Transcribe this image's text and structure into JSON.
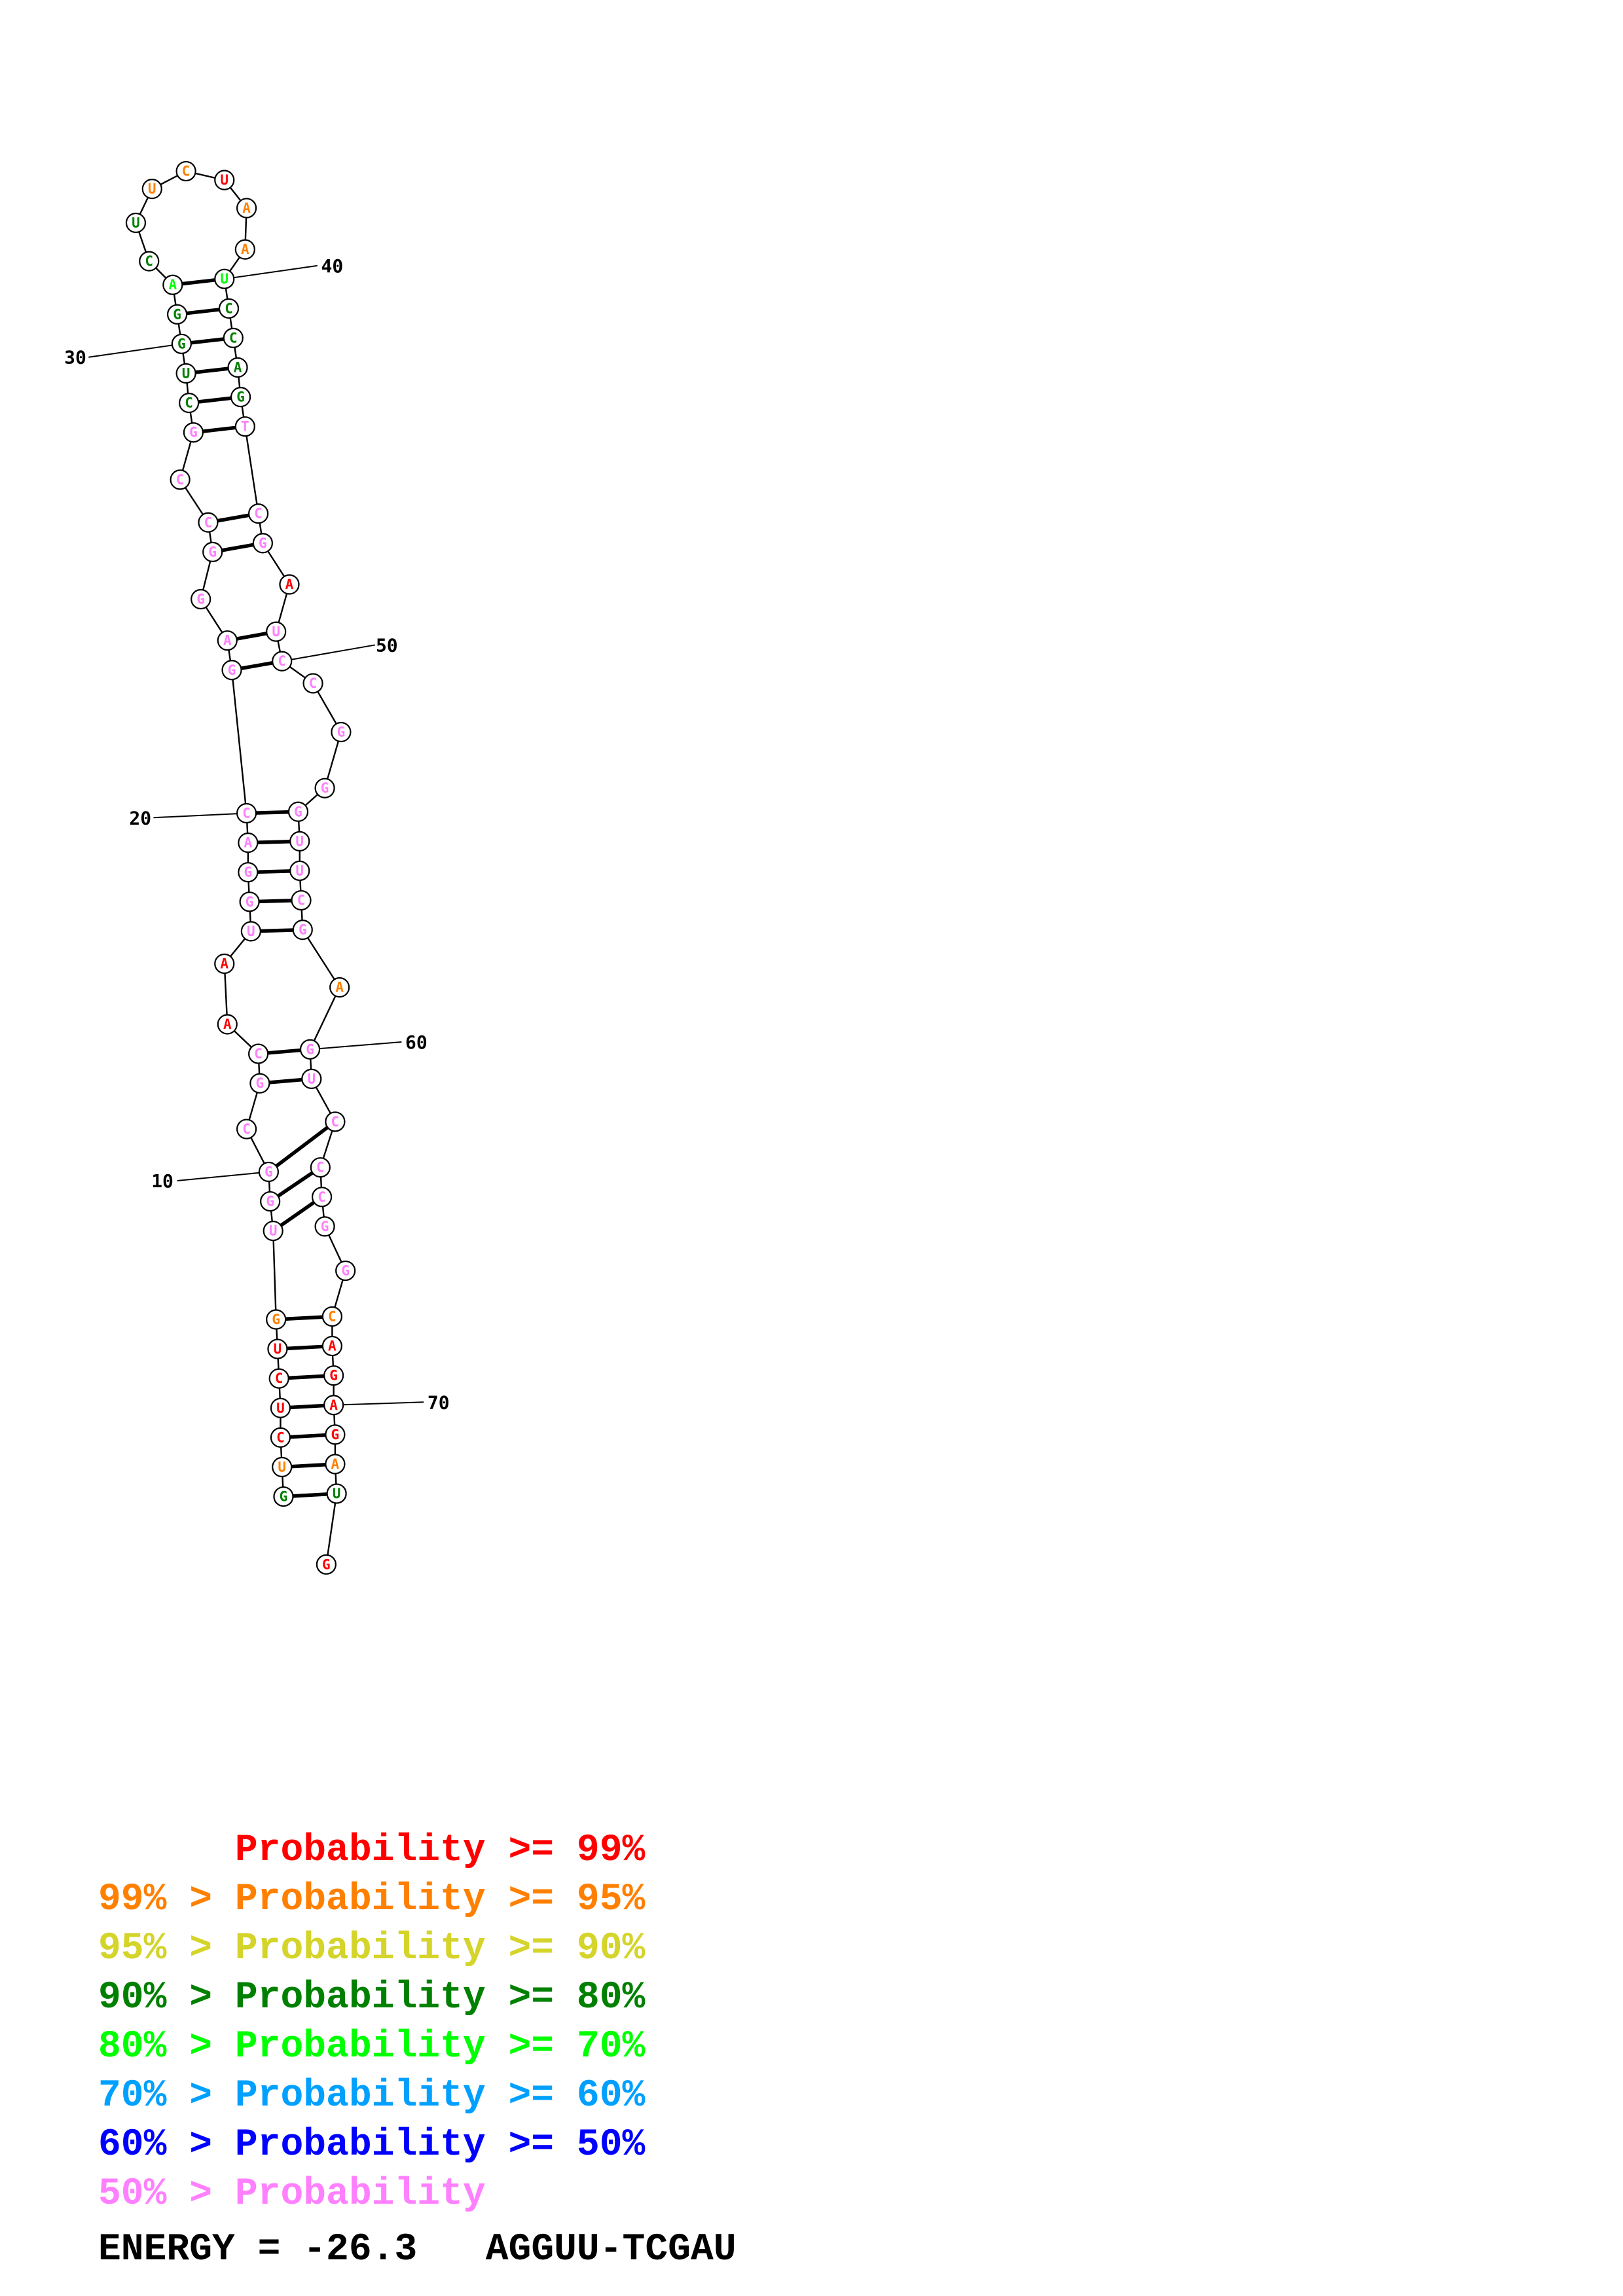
{
  "colors": {
    "c99": "#ff0000",
    "c95": "#ff8000",
    "c90": "#d4d42a",
    "c80": "#008000",
    "c70": "#00ff00",
    "c60": "#00a0ff",
    "c50": "#0000ff",
    "clow": "#ff80ff"
  },
  "structure": {
    "nucleotides": [
      {
        "b": "G",
        "p": "c80"
      },
      {
        "b": "U",
        "p": "c95"
      },
      {
        "b": "C",
        "p": "c99"
      },
      {
        "b": "U",
        "p": "c99"
      },
      {
        "b": "C",
        "p": "c99"
      },
      {
        "b": "U",
        "p": "c99"
      },
      {
        "b": "G",
        "p": "c95"
      },
      {
        "b": "U",
        "p": "clow"
      },
      {
        "b": "G",
        "p": "clow"
      },
      {
        "b": "G",
        "p": "clow"
      },
      {
        "b": "C",
        "p": "clow"
      },
      {
        "b": "G",
        "p": "clow"
      },
      {
        "b": "C",
        "p": "clow"
      },
      {
        "b": "A",
        "p": "c99"
      },
      {
        "b": "A",
        "p": "c99"
      },
      {
        "b": "U",
        "p": "clow"
      },
      {
        "b": "G",
        "p": "clow"
      },
      {
        "b": "G",
        "p": "clow"
      },
      {
        "b": "A",
        "p": "clow"
      },
      {
        "b": "C",
        "p": "clow"
      },
      {
        "b": "G",
        "p": "clow"
      },
      {
        "b": "A",
        "p": "clow"
      },
      {
        "b": "G",
        "p": "clow"
      },
      {
        "b": "G",
        "p": "clow"
      },
      {
        "b": "C",
        "p": "clow"
      },
      {
        "b": "C",
        "p": "clow"
      },
      {
        "b": "G",
        "p": "clow"
      },
      {
        "b": "C",
        "p": "c80"
      },
      {
        "b": "U",
        "p": "c80"
      },
      {
        "b": "G",
        "p": "c80"
      },
      {
        "b": "G",
        "p": "c80"
      },
      {
        "b": "A",
        "p": "c70"
      },
      {
        "b": "C",
        "p": "c80"
      },
      {
        "b": "U",
        "p": "c80"
      },
      {
        "b": "U",
        "p": "c95"
      },
      {
        "b": "C",
        "p": "c95"
      },
      {
        "b": "U",
        "p": "c99"
      },
      {
        "b": "A",
        "p": "c95"
      },
      {
        "b": "A",
        "p": "c95"
      },
      {
        "b": "U",
        "p": "c70"
      },
      {
        "b": "C",
        "p": "c80"
      },
      {
        "b": "C",
        "p": "c80"
      },
      {
        "b": "A",
        "p": "c80"
      },
      {
        "b": "G",
        "p": "c80"
      },
      {
        "b": "T",
        "p": "clow"
      },
      {
        "b": "C",
        "p": "clow"
      },
      {
        "b": "G",
        "p": "clow"
      },
      {
        "b": "A",
        "p": "c99"
      },
      {
        "b": "U",
        "p": "clow"
      },
      {
        "b": "C",
        "p": "clow"
      },
      {
        "b": "C",
        "p": "clow"
      },
      {
        "b": "G",
        "p": "clow"
      },
      {
        "b": "G",
        "p": "clow"
      },
      {
        "b": "G",
        "p": "clow"
      },
      {
        "b": "U",
        "p": "clow"
      },
      {
        "b": "U",
        "p": "clow"
      },
      {
        "b": "C",
        "p": "clow"
      },
      {
        "b": "G",
        "p": "clow"
      },
      {
        "b": "A",
        "p": "c95"
      },
      {
        "b": "G",
        "p": "clow"
      },
      {
        "b": "U",
        "p": "clow"
      },
      {
        "b": "C",
        "p": "clow"
      },
      {
        "b": "C",
        "p": "clow"
      },
      {
        "b": "C",
        "p": "clow"
      },
      {
        "b": "G",
        "p": "clow"
      },
      {
        "b": "G",
        "p": "clow"
      },
      {
        "b": "C",
        "p": "c95"
      },
      {
        "b": "A",
        "p": "c99"
      },
      {
        "b": "G",
        "p": "c99"
      },
      {
        "b": "A",
        "p": "c99"
      },
      {
        "b": "G",
        "p": "c99"
      },
      {
        "b": "A",
        "p": "c95"
      },
      {
        "b": "U",
        "p": "c80"
      },
      {
        "b": "G",
        "p": "c99"
      }
    ],
    "pairs": [
      [
        1,
        73
      ],
      [
        2,
        72
      ],
      [
        3,
        71
      ],
      [
        4,
        70
      ],
      [
        5,
        69
      ],
      [
        6,
        68
      ],
      [
        7,
        67
      ],
      [
        8,
        64
      ],
      [
        9,
        63
      ],
      [
        10,
        62
      ],
      [
        12,
        61
      ],
      [
        13,
        60
      ],
      [
        16,
        58
      ],
      [
        17,
        57
      ],
      [
        18,
        56
      ],
      [
        19,
        55
      ],
      [
        20,
        54
      ],
      [
        21,
        50
      ],
      [
        22,
        49
      ],
      [
        24,
        47
      ],
      [
        25,
        46
      ],
      [
        27,
        45
      ],
      [
        28,
        44
      ],
      [
        29,
        43
      ],
      [
        30,
        42
      ],
      [
        31,
        41
      ],
      [
        32,
        40
      ]
    ],
    "position_labels": [
      "10",
      "20",
      "30",
      "40",
      "50",
      "60",
      "70"
    ]
  },
  "legend": [
    {
      "prefix": "",
      "text": "Probability >= 99%",
      "color": "c99"
    },
    {
      "prefix": "99% > ",
      "text": "Probability >= 95%",
      "color": "c95"
    },
    {
      "prefix": "95% > ",
      "text": "Probability >= 90%",
      "color": "c90"
    },
    {
      "prefix": "90% > ",
      "text": "Probability >= 80%",
      "color": "c80"
    },
    {
      "prefix": "80% > ",
      "text": "Probability >= 70%",
      "color": "c70"
    },
    {
      "prefix": "70% > ",
      "text": "Probability >= 60%",
      "color": "c60"
    },
    {
      "prefix": "60% > ",
      "text": "Probability >= 50%",
      "color": "c50"
    },
    {
      "prefix": "50% > ",
      "text": "Probability",
      "color": "clow"
    }
  ],
  "energy": {
    "label": "ENERGY = -26.3",
    "name": "AGGUU-TCGAU"
  }
}
